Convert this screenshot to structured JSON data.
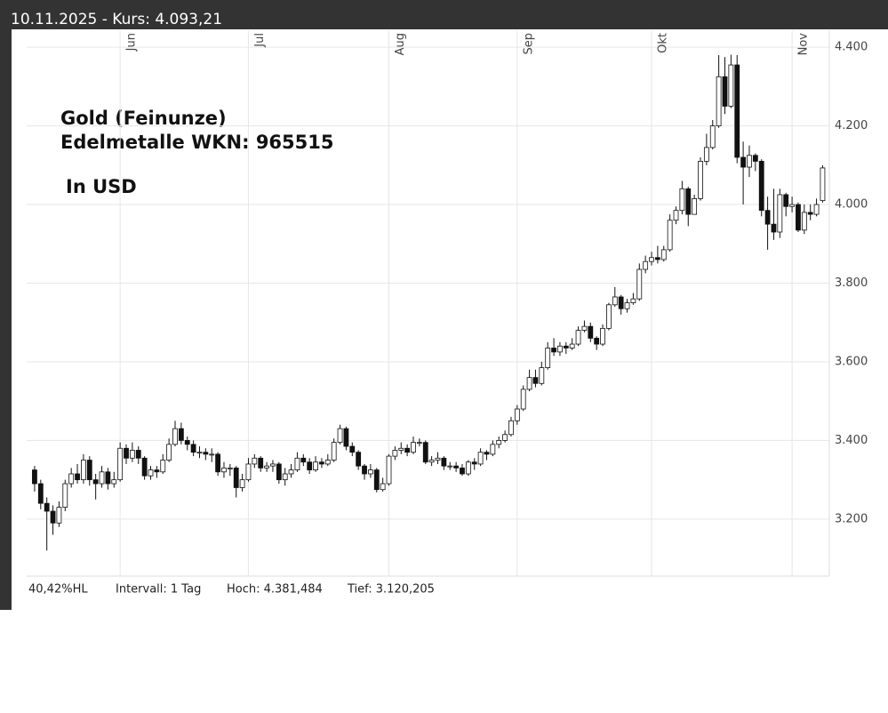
{
  "header": {
    "title": "10.11.2025  -  Kurs: 4.093,21"
  },
  "footer": {
    "items": [
      "40,42%HL",
      "Intervall: 1 Tag",
      "Hoch: 4.381,484",
      "Tief: 3.120,205"
    ]
  },
  "chart_data": {
    "type": "candlestick",
    "annotations": [
      "Gold (Feinunze)",
      "Edelmetalle WKN: 965515",
      "In USD"
    ],
    "xlim": [
      -1.3,
      130.1
    ],
    "xticks": [
      {
        "value": 14,
        "label": "Jun"
      },
      {
        "value": 35,
        "label": "Jul"
      },
      {
        "value": 58,
        "label": "Aug"
      },
      {
        "value": 79,
        "label": "Sep"
      },
      {
        "value": 101,
        "label": "Okt"
      },
      {
        "value": 124,
        "label": "Nov"
      }
    ],
    "ylim": [
      3055,
      4441
    ],
    "yticks": [
      {
        "value": 3200,
        "label": "3.200"
      },
      {
        "value": 3400,
        "label": "3.400"
      },
      {
        "value": 3600,
        "label": "3.600"
      },
      {
        "value": 3800,
        "label": "3.800"
      },
      {
        "value": 4000,
        "label": "4.000"
      },
      {
        "value": 4200,
        "label": "4.200"
      },
      {
        "value": 4400,
        "label": "4.400"
      }
    ],
    "grid": true,
    "up_color": "#ffffff",
    "down_color": "#111111",
    "line_color": "#111111",
    "open": [
      3325,
      3290,
      3240,
      3220,
      3190,
      3230,
      3290,
      3315,
      3300,
      3350,
      3300,
      3290,
      3320,
      3290,
      3300,
      3380,
      3355,
      3375,
      3355,
      3310,
      3325,
      3320,
      3350,
      3390,
      3430,
      3400,
      3390,
      3370,
      3370,
      3365,
      3365,
      3320,
      3330,
      3330,
      3280,
      3300,
      3340,
      3355,
      3330,
      3335,
      3340,
      3300,
      3315,
      3325,
      3355,
      3345,
      3325,
      3345,
      3340,
      3350,
      3395,
      3430,
      3385,
      3370,
      3335,
      3315,
      3325,
      3275,
      3290,
      3360,
      3375,
      3380,
      3370,
      3395,
      3395,
      3345,
      3350,
      3355,
      3335,
      3335,
      3330,
      3315,
      3345,
      3340,
      3370,
      3365,
      3390,
      3400,
      3415,
      3450,
      3480,
      3530,
      3560,
      3545,
      3585,
      3635,
      3625,
      3640,
      3635,
      3645,
      3680,
      3690,
      3660,
      3645,
      3685,
      3745,
      3765,
      3735,
      3750,
      3760,
      3835,
      3855,
      3865,
      3860,
      3885,
      3960,
      3985,
      4040,
      3975,
      4015,
      4110,
      4145,
      4200,
      4325,
      4250,
      4355,
      4120,
      4095,
      4125,
      4110,
      3985,
      3950,
      3930,
      4025,
      3995,
      4000,
      3935,
      3980,
      3975,
      4010
    ],
    "high": [
      3335,
      3300,
      3255,
      3235,
      3245,
      3300,
      3330,
      3340,
      3365,
      3360,
      3315,
      3335,
      3330,
      3320,
      3395,
      3390,
      3395,
      3385,
      3360,
      3335,
      3335,
      3365,
      3405,
      3450,
      3445,
      3410,
      3400,
      3385,
      3380,
      3380,
      3370,
      3345,
      3340,
      3335,
      3315,
      3355,
      3365,
      3360,
      3345,
      3350,
      3345,
      3330,
      3340,
      3370,
      3365,
      3355,
      3360,
      3355,
      3365,
      3405,
      3440,
      3435,
      3395,
      3375,
      3340,
      3340,
      3330,
      3305,
      3365,
      3385,
      3395,
      3390,
      3410,
      3405,
      3400,
      3360,
      3370,
      3360,
      3345,
      3345,
      3340,
      3350,
      3355,
      3380,
      3375,
      3400,
      3410,
      3425,
      3460,
      3490,
      3540,
      3580,
      3580,
      3600,
      3650,
      3660,
      3650,
      3650,
      3660,
      3690,
      3705,
      3700,
      3665,
      3695,
      3750,
      3790,
      3770,
      3760,
      3775,
      3850,
      3870,
      3880,
      3895,
      3895,
      3975,
      3995,
      4060,
      4045,
      4025,
      4120,
      4180,
      4215,
      4380,
      4375,
      4381,
      4380,
      4160,
      4150,
      4130,
      4115,
      4020,
      4040,
      4040,
      4030,
      4020,
      4005,
      4000,
      4000,
      4015,
      4100
    ],
    "low": [
      3270,
      3225,
      3120,
      3160,
      3180,
      3220,
      3280,
      3290,
      3290,
      3285,
      3250,
      3280,
      3275,
      3280,
      3295,
      3340,
      3345,
      3340,
      3300,
      3300,
      3305,
      3315,
      3345,
      3385,
      3390,
      3375,
      3360,
      3355,
      3350,
      3345,
      3310,
      3305,
      3310,
      3255,
      3270,
      3295,
      3330,
      3320,
      3320,
      3320,
      3290,
      3285,
      3305,
      3320,
      3335,
      3315,
      3320,
      3330,
      3335,
      3345,
      3390,
      3375,
      3360,
      3325,
      3300,
      3305,
      3268,
      3270,
      3285,
      3350,
      3365,
      3360,
      3365,
      3385,
      3340,
      3335,
      3340,
      3325,
      3325,
      3320,
      3310,
      3310,
      3325,
      3335,
      3350,
      3360,
      3380,
      3395,
      3410,
      3440,
      3475,
      3525,
      3535,
      3540,
      3580,
      3615,
      3615,
      3620,
      3630,
      3640,
      3675,
      3650,
      3630,
      3640,
      3680,
      3740,
      3720,
      3725,
      3745,
      3755,
      3825,
      3845,
      3850,
      3855,
      3880,
      3950,
      3975,
      3945,
      3975,
      4010,
      4100,
      4140,
      4195,
      4230,
      4245,
      4105,
      4000,
      4070,
      4085,
      3970,
      3885,
      3910,
      3915,
      3970,
      3980,
      3930,
      3925,
      3960,
      3970,
      4005
    ],
    "close": [
      3290,
      3240,
      3220,
      3190,
      3230,
      3290,
      3315,
      3300,
      3350,
      3300,
      3290,
      3320,
      3290,
      3300,
      3380,
      3355,
      3375,
      3355,
      3310,
      3325,
      3320,
      3350,
      3390,
      3430,
      3400,
      3390,
      3370,
      3370,
      3365,
      3365,
      3320,
      3330,
      3330,
      3280,
      3300,
      3340,
      3355,
      3330,
      3335,
      3340,
      3300,
      3315,
      3325,
      3355,
      3345,
      3325,
      3345,
      3340,
      3350,
      3395,
      3430,
      3385,
      3370,
      3335,
      3315,
      3325,
      3275,
      3290,
      3360,
      3375,
      3380,
      3370,
      3395,
      3395,
      3345,
      3350,
      3355,
      3335,
      3335,
      3330,
      3315,
      3345,
      3340,
      3370,
      3365,
      3390,
      3400,
      3415,
      3450,
      3480,
      3530,
      3560,
      3545,
      3585,
      3635,
      3625,
      3640,
      3635,
      3645,
      3680,
      3690,
      3660,
      3645,
      3685,
      3745,
      3765,
      3735,
      3750,
      3760,
      3835,
      3855,
      3865,
      3860,
      3885,
      3960,
      3985,
      4040,
      3975,
      4015,
      4110,
      4145,
      4200,
      4325,
      4250,
      4355,
      4120,
      4095,
      4125,
      4110,
      3985,
      3950,
      3930,
      4025,
      3995,
      4000,
      3935,
      3980,
      3975,
      4000,
      4093
    ]
  }
}
